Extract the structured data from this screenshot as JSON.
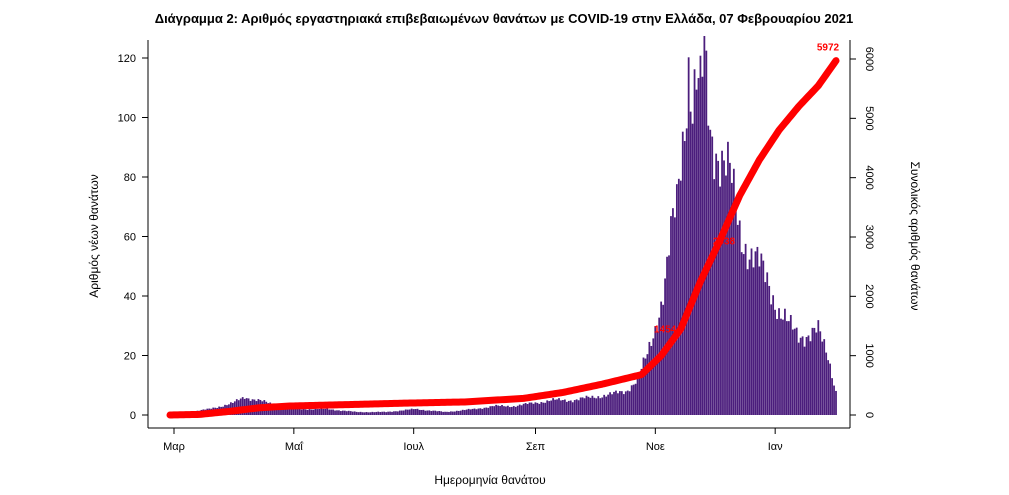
{
  "chart_data": {
    "type": "bar",
    "title": "Διάγραμμα 2: Αριθμός εργαστηριακά επιβεβαιωμένων θανάτων με COVID-19 στην Ελλάδα, 07 Φεβρουαρίου 2021",
    "xlabel": "Ημερομηνία θανάτου",
    "ylabel": "Αριθμός νέων θανάτων",
    "y2label": "Συνολικός αριθμός θανάτων",
    "x_ticks": [
      "Μαρ",
      "Μαΐ",
      "Ιουλ",
      "Σεπ",
      "Νοε",
      "Ιαν"
    ],
    "y_ticks": [
      0,
      20,
      40,
      60,
      80,
      100,
      120
    ],
    "y2_ticks": [
      0,
      1000,
      2000,
      3000,
      4000,
      5000,
      6000
    ],
    "ylim": [
      0,
      122
    ],
    "y2lim": [
      0,
      6100
    ],
    "start_date": "2020-03-01",
    "bar_color": "#4b1d7c",
    "cumulative_color": "#ff0000",
    "series": [
      {
        "name": "Αριθμός νέων θανάτων",
        "kind": "bar",
        "keypoints": [
          [
            2,
            0
          ],
          [
            10,
            1
          ],
          [
            20,
            2
          ],
          [
            32,
            4
          ],
          [
            38,
            6
          ],
          [
            45,
            5
          ],
          [
            55,
            3
          ],
          [
            65,
            2
          ],
          [
            80,
            2
          ],
          [
            95,
            1
          ],
          [
            110,
            1
          ],
          [
            125,
            2
          ],
          [
            140,
            1
          ],
          [
            155,
            2
          ],
          [
            165,
            3
          ],
          [
            175,
            3
          ],
          [
            185,
            4
          ],
          [
            195,
            5
          ],
          [
            205,
            5
          ],
          [
            215,
            6
          ],
          [
            225,
            7
          ],
          [
            232,
            8
          ],
          [
            238,
            12
          ],
          [
            243,
            20
          ],
          [
            246,
            27
          ],
          [
            249,
            35
          ],
          [
            252,
            45
          ],
          [
            255,
            60
          ],
          [
            258,
            70
          ],
          [
            262,
            100
          ],
          [
            264,
            120
          ],
          [
            266,
            105
          ],
          [
            268,
            112
          ],
          [
            270,
            106
          ],
          [
            272,
            119
          ],
          [
            275,
            95
          ],
          [
            280,
            88
          ],
          [
            285,
            80
          ],
          [
            290,
            62
          ],
          [
            295,
            55
          ],
          [
            300,
            50
          ],
          [
            305,
            44
          ],
          [
            310,
            35
          ],
          [
            315,
            30
          ],
          [
            320,
            27
          ],
          [
            325,
            27
          ],
          [
            330,
            28
          ],
          [
            335,
            20
          ],
          [
            339,
            8
          ]
        ]
      },
      {
        "name": "Συνολικός αριθμός θανάτων",
        "kind": "line",
        "keypoints": [
          [
            0,
            0
          ],
          [
            15,
            10
          ],
          [
            30,
            60
          ],
          [
            45,
            120
          ],
          [
            60,
            150
          ],
          [
            90,
            175
          ],
          [
            120,
            200
          ],
          [
            150,
            220
          ],
          [
            180,
            280
          ],
          [
            200,
            380
          ],
          [
            220,
            520
          ],
          [
            240,
            680
          ],
          [
            250,
            1000
          ],
          [
            260,
            1450
          ],
          [
            270,
            2250
          ],
          [
            280,
            2950
          ],
          [
            290,
            3700
          ],
          [
            300,
            4300
          ],
          [
            310,
            4800
          ],
          [
            320,
            5200
          ],
          [
            330,
            5550
          ],
          [
            339,
            5972
          ]
        ]
      }
    ],
    "annotations": [
      {
        "x": 339,
        "y2": 5972,
        "text": "5972"
      },
      {
        "x": 282,
        "y2": 2938,
        "text": "2938"
      },
      {
        "x": 252,
        "y2": 1454,
        "text": "1454"
      }
    ]
  }
}
